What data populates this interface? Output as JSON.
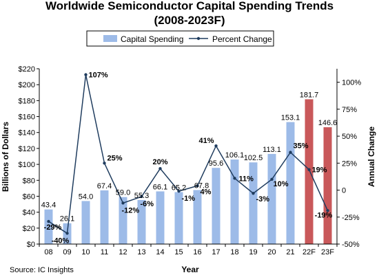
{
  "chart_data": {
    "type": "bar",
    "title_line1": "Worldwide Semiconductor Capital Spending Trends",
    "title_line2": "(2008-2023F)",
    "xlabel": "Year",
    "ylabel": "Billions of Dollars",
    "y2label": "Annual Change",
    "categories": [
      "08",
      "09",
      "10",
      "11",
      "12",
      "13",
      "14",
      "15",
      "16",
      "17",
      "18",
      "19",
      "20",
      "21",
      "22F",
      "23F"
    ],
    "ylim": [
      0,
      220
    ],
    "y_ticks": [
      0,
      20,
      40,
      60,
      80,
      100,
      120,
      140,
      160,
      180,
      200,
      220
    ],
    "y_tick_labels": [
      "$0",
      "$20",
      "$40",
      "$60",
      "$80",
      "$100",
      "$120",
      "$140",
      "$160",
      "$180",
      "$200",
      "$220"
    ],
    "y2lim": [
      -50,
      112.5
    ],
    "y2_ticks": [
      -50,
      -25,
      0,
      25,
      50,
      75,
      100
    ],
    "y2_tick_labels": [
      "-50%",
      "-25%",
      "0",
      "25%",
      "50%",
      "75%",
      "100%"
    ],
    "legend_position": "top",
    "series": [
      {
        "name": "Capital Spending",
        "kind": "bar",
        "values": [
          43.4,
          26.1,
          54.0,
          67.4,
          59.0,
          55.3,
          66.1,
          65.2,
          67.8,
          95.6,
          106.1,
          102.5,
          113.1,
          153.1,
          181.7,
          146.6
        ],
        "value_labels": [
          "43.4",
          "26.1",
          "54.0",
          "67.4",
          "59.0",
          "55.3",
          "66.1",
          "65.2",
          "67.8",
          "95.6",
          "106.1",
          "102.5",
          "113.1",
          "153.1",
          "181.7",
          "146.6"
        ],
        "color": "#9dbbe8",
        "forecast_color": "#c9585a"
      },
      {
        "name": "Percent Change",
        "kind": "line",
        "axis": "right",
        "values": [
          -29,
          -40,
          107,
          25,
          -12,
          -6,
          20,
          -1,
          4,
          41,
          11,
          -3,
          10,
          35,
          19,
          -19
        ],
        "value_labels": [
          "-29%",
          "-40%",
          "107%",
          "25%",
          "-12%",
          "-6%",
          "20%",
          "-1%",
          "4%",
          "41%",
          "11%",
          "-3%",
          "10%",
          "35%",
          "19%",
          "-19%"
        ],
        "color": "#1f3c5e"
      }
    ],
    "forecast_categories": [
      "22F",
      "23F"
    ]
  },
  "source": "Source: IC Insights"
}
